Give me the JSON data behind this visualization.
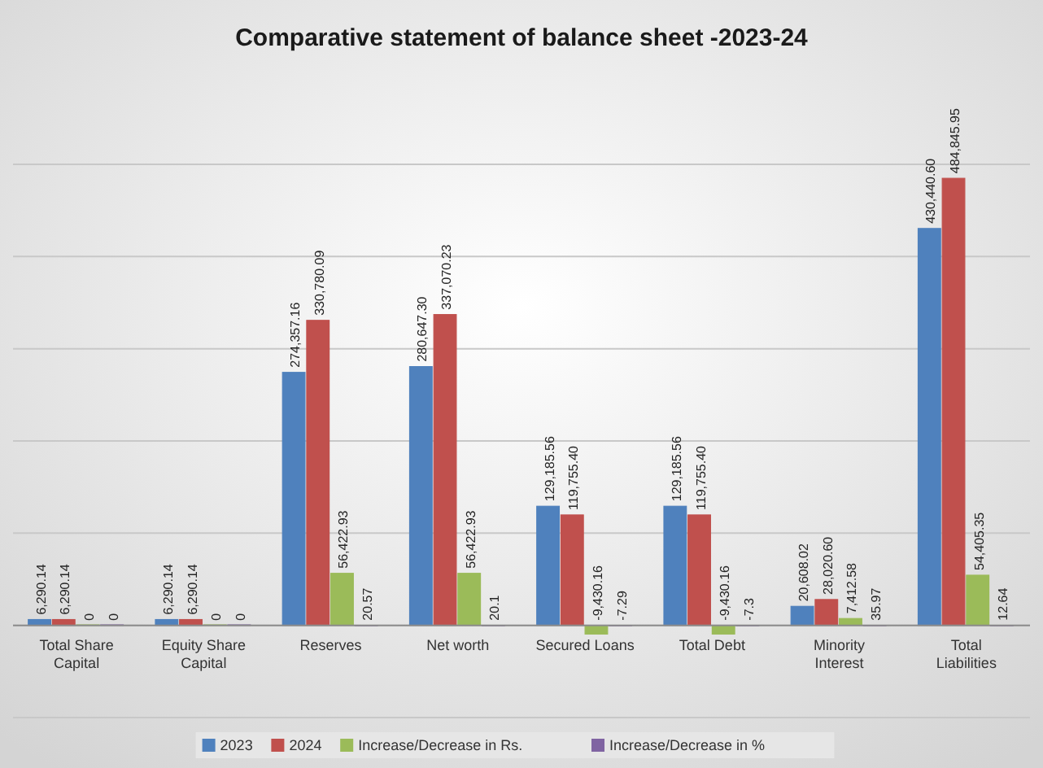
{
  "chart_data": {
    "type": "bar",
    "title": "Comparative statement of balance sheet  -2023-24",
    "categories": [
      "Total Share Capital",
      "Equity Share Capital",
      "Reserves",
      "Net worth",
      "Secured Loans",
      "Total Debt",
      "Minority Interest",
      "Total Liabilities"
    ],
    "series": [
      {
        "name": "2023",
        "color": "#4f81bd",
        "values": [
          6290.14,
          6290.14,
          274357.16,
          280647.3,
          129185.56,
          129185.56,
          20608.02,
          430440.6
        ],
        "value_labels": [
          "6,290.14",
          "6,290.14",
          "274,357.16",
          "280,647.30",
          "129,185.56",
          "129,185.56",
          "20,608.02",
          "430,440.60"
        ]
      },
      {
        "name": "2024",
        "color": "#c0504d",
        "values": [
          6290.14,
          6290.14,
          330780.09,
          337070.23,
          119755.4,
          119755.4,
          28020.6,
          484845.95
        ],
        "value_labels": [
          "6,290.14",
          "6,290.14",
          "330,780.09",
          "337,070.23",
          "119,755.40",
          "119,755.40",
          "28,020.60",
          "484,845.95"
        ]
      },
      {
        "name": "Increase/Decrease in Rs.",
        "color": "#9bbb59",
        "values": [
          0,
          0,
          56422.93,
          56422.93,
          -9430.16,
          -9430.16,
          7412.58,
          54405.35
        ],
        "value_labels": [
          "0",
          "0",
          "56,422.93",
          "56,422.93",
          "-9,430.16",
          "-9,430.16",
          "7,412.58",
          "54,405.35"
        ]
      },
      {
        "name": "Increase/Decrease in %",
        "color": "#8064a2",
        "values": [
          0,
          0,
          20.57,
          20.1,
          -7.29,
          -7.3,
          35.97,
          12.64
        ],
        "value_labels": [
          "0",
          "0",
          "20.57",
          "20.1",
          "-7.29",
          "-7.3",
          "35.97",
          "12.64"
        ]
      }
    ],
    "ylim": [
      -100000,
      500000
    ],
    "yticks": [
      {
        "value": -100000,
        "label": null
      },
      {
        "value": 0,
        "label": null
      },
      {
        "value": 100000,
        "label": null
      },
      {
        "value": 200000,
        "label": null
      },
      {
        "value": 300000,
        "label": null
      },
      {
        "value": 400000,
        "label": null
      },
      {
        "value": 500000,
        "label": null
      }
    ],
    "tick_labels": "x",
    "grid": "y",
    "legend": "bottom"
  }
}
